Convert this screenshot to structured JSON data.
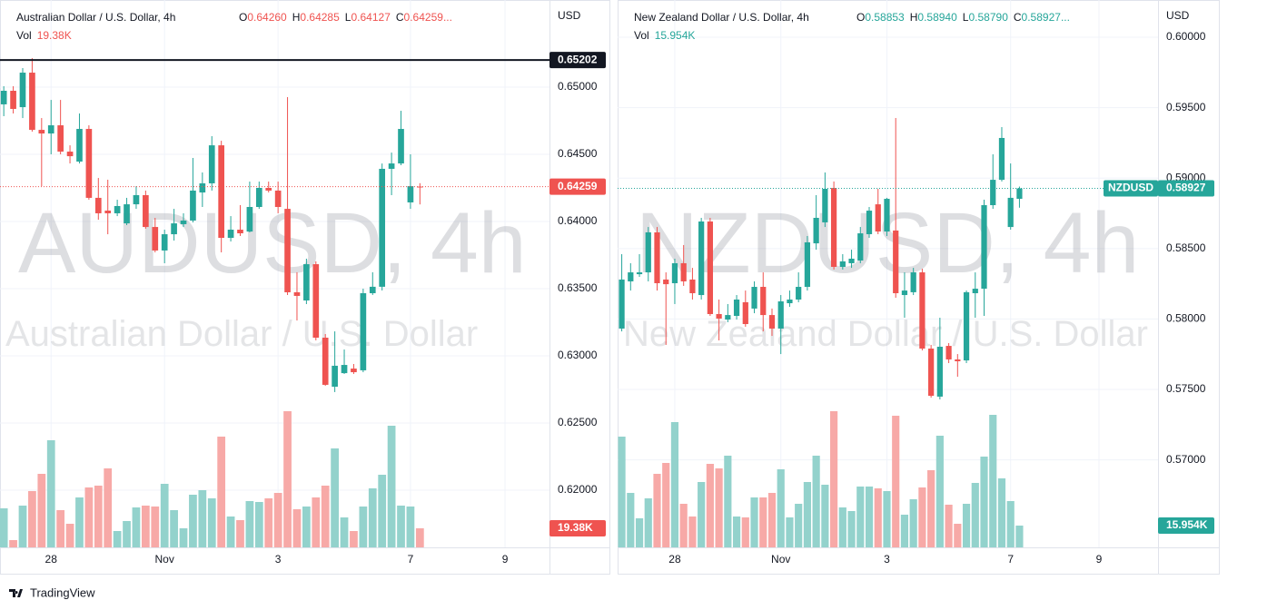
{
  "chart_data": [
    {
      "type": "candlestick",
      "title": "Australian Dollar / U.S. Dollar, 4h",
      "watermark": "AUDUSD, 4h",
      "watermark_subtitle": "Australian Dollar / U.S. Dollar",
      "currency": "USD",
      "ohlc_names": [
        "O",
        "H",
        "L",
        "C"
      ],
      "last_labels": {
        "open": "0.64260",
        "high": "0.64285",
        "low": "0.64127",
        "close": "0.64259"
      },
      "legend_more": "...",
      "volume_name": "Vol",
      "volume_label": "19.38K",
      "open": [
        0.64872,
        0.64973,
        0.64851,
        0.65108,
        0.64682,
        0.64655,
        0.64716,
        0.6452,
        0.64446,
        0.64689,
        0.64176,
        0.64081,
        0.64061,
        0.63986,
        0.64128,
        0.64196,
        0.63959,
        0.63784,
        0.63905,
        0.6398,
        0.64007,
        0.64216,
        0.64284,
        0.64567,
        0.63878,
        0.63939,
        0.63925,
        0.64108,
        0.6425,
        0.6423,
        0.64094,
        0.63473,
        0.63412,
        0.63682,
        0.63135,
        0.6277,
        0.62871,
        0.62905,
        0.62892,
        0.63466,
        0.63514,
        0.64392,
        0.64432,
        0.64142,
        0.6426
      ],
      "high": [
        0.65007,
        0.65007,
        0.65142,
        0.65216,
        0.6477,
        0.64905,
        0.64905,
        0.64567,
        0.64804,
        0.64716,
        0.64324,
        0.64311,
        0.64162,
        0.64176,
        0.64263,
        0.6423,
        0.64027,
        0.63939,
        0.64094,
        0.64061,
        0.64473,
        0.64365,
        0.64635,
        0.64601,
        0.6404,
        0.64122,
        0.64297,
        0.64297,
        0.64297,
        0.64297,
        0.64926,
        0.63622,
        0.63723,
        0.63703,
        0.63162,
        0.63182,
        0.63047,
        0.62939,
        0.635,
        0.63622,
        0.64432,
        0.64513,
        0.64824,
        0.645,
        0.64285
      ],
      "low": [
        0.64784,
        0.64804,
        0.6477,
        0.64669,
        0.64263,
        0.645,
        0.645,
        0.64432,
        0.64432,
        0.64162,
        0.64013,
        0.63905,
        0.6404,
        0.63973,
        0.64094,
        0.63946,
        0.6377,
        0.63689,
        0.63858,
        0.63959,
        0.63993,
        0.64108,
        0.6423,
        0.6377,
        0.63851,
        0.63892,
        0.63919,
        0.64094,
        0.64216,
        0.64061,
        0.63453,
        0.63263,
        0.63385,
        0.63115,
        0.62777,
        0.6273,
        0.62865,
        0.62865,
        0.62878,
        0.63453,
        0.63486,
        0.64196,
        0.64419,
        0.64094,
        0.64127
      ],
      "close": [
        0.64973,
        0.64838,
        0.65108,
        0.64682,
        0.64655,
        0.64716,
        0.6452,
        0.64486,
        0.64689,
        0.64176,
        0.64061,
        0.64061,
        0.64115,
        0.64128,
        0.64196,
        0.63959,
        0.63784,
        0.63905,
        0.63986,
        0.64007,
        0.6423,
        0.64284,
        0.64567,
        0.63878,
        0.63939,
        0.63912,
        0.64108,
        0.6425,
        0.6423,
        0.64108,
        0.63473,
        0.63446,
        0.63682,
        0.63135,
        0.62784,
        0.62926,
        0.62932,
        0.62878,
        0.63466,
        0.63514,
        0.64392,
        0.64432,
        0.64689,
        0.64263,
        0.64259
      ],
      "volume": [
        39690,
        7380,
        42460,
        57230,
        74760,
        108910,
        37840,
        24000,
        50770,
        60920,
        62760,
        80300,
        16610,
        26770,
        40610,
        42460,
        41540,
        64610,
        37840,
        19380,
        53530,
        58150,
        49840,
        112610,
        31380,
        27690,
        47070,
        46150,
        49840,
        55380,
        138450,
        38770,
        41540,
        50770,
        62760,
        100610,
        30460,
        16610,
        41540,
        60000,
        73840,
        123680,
        42460,
        41540,
        19380
      ],
      "up_color": "#26a69a",
      "down_color": "#ef5350",
      "volume_up_color": "#93d2cc",
      "volume_down_color": "#f7a9a7",
      "xlim": [
        -0.4,
        57.7
      ],
      "xticks": [
        {
          "value": 5,
          "label": "28"
        },
        {
          "value": 17,
          "label": "Nov"
        },
        {
          "value": 29,
          "label": "3"
        },
        {
          "value": 43,
          "label": "7"
        },
        {
          "value": 53,
          "label": "9"
        }
      ],
      "ylim": [
        0.61574,
        0.65615
      ],
      "yticks": [
        {
          "value": 0.62,
          "label": "0.62000"
        },
        {
          "value": 0.625,
          "label": "0.62500"
        },
        {
          "value": 0.63,
          "label": "0.63000"
        },
        {
          "value": 0.635,
          "label": "0.63500"
        },
        {
          "value": 0.64,
          "label": "0.64000"
        },
        {
          "value": 0.645,
          "label": "0.64500"
        },
        {
          "value": 0.65,
          "label": "0.65000"
        }
      ],
      "hline": {
        "value": 0.65202,
        "label": "0.65202",
        "color": "#131722"
      },
      "grid": true
    },
    {
      "type": "candlestick",
      "title": "New Zealand Dollar / U.S. Dollar, 4h",
      "watermark": "NZDUSD, 4h",
      "watermark_subtitle": "New Zealand Dollar / U.S. Dollar",
      "currency": "USD",
      "symbol": "NZDUSD",
      "ohlc_names": [
        "O",
        "H",
        "L",
        "C"
      ],
      "last_labels": {
        "open": "0.58853",
        "high": "0.58940",
        "low": "0.58790",
        "close": "0.58927"
      },
      "legend_more": "...",
      "volume_name": "Vol",
      "volume_label": "15.954K",
      "open": [
        0.57932,
        0.58267,
        0.58318,
        0.58331,
        0.58615,
        0.5828,
        0.58254,
        0.58396,
        0.5828,
        0.5817,
        0.58692,
        0.58035,
        0.57996,
        0.58022,
        0.58119,
        0.58074,
        0.58228,
        0.58028,
        0.57932,
        0.58112,
        0.58138,
        0.58228,
        0.58537,
        0.58686,
        0.5893,
        0.5837,
        0.58396,
        0.58415,
        0.58602,
        0.58814,
        0.58621,
        0.58628,
        0.5817,
        0.5819,
        0.58331,
        0.5779,
        0.57449,
        0.57809,
        0.57713,
        0.57706,
        0.58183,
        0.58215,
        0.58808,
        0.58988,
        0.58653,
        0.58853
      ],
      "high": [
        0.5846,
        0.58396,
        0.5846,
        0.58653,
        0.58653,
        0.58331,
        0.58428,
        0.58525,
        0.58363,
        0.58718,
        0.58718,
        0.58138,
        0.58106,
        0.5817,
        0.58202,
        0.58267,
        0.58331,
        0.58074,
        0.5817,
        0.58202,
        0.58331,
        0.58589,
        0.58879,
        0.5904,
        0.58976,
        0.5846,
        0.58492,
        0.58653,
        0.58795,
        0.58924,
        0.5886,
        0.59427,
        0.58331,
        0.58363,
        0.58357,
        0.57816,
        0.58009,
        0.57829,
        0.57751,
        0.58202,
        0.58331,
        0.58847,
        0.59169,
        0.59362,
        0.59104,
        0.5894
      ],
      "low": [
        0.57912,
        0.58202,
        0.58299,
        0.58267,
        0.58202,
        0.57816,
        0.58106,
        0.58235,
        0.58138,
        0.58138,
        0.58022,
        0.57848,
        0.57977,
        0.57996,
        0.57945,
        0.58041,
        0.57912,
        0.5788,
        0.57751,
        0.58086,
        0.58119,
        0.58202,
        0.58492,
        0.58653,
        0.58351,
        0.58351,
        0.58363,
        0.58396,
        0.58576,
        0.58602,
        0.58589,
        0.58151,
        0.58009,
        0.5817,
        0.57777,
        0.57442,
        0.57429,
        0.57687,
        0.5759,
        0.57687,
        0.58009,
        0.58022,
        0.58782,
        0.58976,
        0.58634,
        0.5879
      ],
      "close": [
        0.5828,
        0.58331,
        0.58331,
        0.58615,
        0.58254,
        0.58247,
        0.58396,
        0.58267,
        0.58183,
        0.58692,
        0.58035,
        0.58003,
        0.58028,
        0.58138,
        0.57964,
        0.58228,
        0.58028,
        0.57932,
        0.58125,
        0.58138,
        0.58228,
        0.58544,
        0.58718,
        0.58924,
        0.5837,
        0.58409,
        0.58428,
        0.58608,
        0.58769,
        0.58621,
        0.58853,
        0.58183,
        0.58202,
        0.58331,
        0.5779,
        0.57455,
        0.57803,
        0.57713,
        0.577,
        0.5819,
        0.58215,
        0.58808,
        0.58988,
        0.59285,
        0.5886,
        0.58927
      ],
      "volume": [
        81130,
        39900,
        21280,
        35910,
        53870,
        61850,
        91770,
        31920,
        22610,
        47880,
        61180,
        57860,
        67170,
        22610,
        21950,
        36580,
        36580,
        39900,
        57190,
        21950,
        31920,
        47880,
        67170,
        45890,
        99750,
        29260,
        26600,
        44560,
        44560,
        43230,
        41230,
        96430,
        23940,
        35250,
        43890,
        56530,
        81800,
        31260,
        17290,
        31920,
        47220,
        66500,
        97090,
        50540,
        33920,
        15954
      ],
      "up_color": "#26a69a",
      "down_color": "#ef5350",
      "volume_up_color": "#93d2cc",
      "volume_down_color": "#f7a9a7",
      "xlim": [
        -0.47,
        60.68
      ],
      "xticks": [
        {
          "value": 6,
          "label": "28"
        },
        {
          "value": 18,
          "label": "Nov"
        },
        {
          "value": 30,
          "label": "3"
        },
        {
          "value": 44,
          "label": "7"
        },
        {
          "value": 54,
          "label": "9"
        }
      ],
      "ylim": [
        0.56379,
        0.60232
      ],
      "yticks": [
        {
          "value": 0.57,
          "label": "0.57000"
        },
        {
          "value": 0.575,
          "label": "0.57500"
        },
        {
          "value": 0.58,
          "label": "0.58000"
        },
        {
          "value": 0.585,
          "label": "0.58500"
        },
        {
          "value": 0.59,
          "label": "0.59000"
        },
        {
          "value": 0.595,
          "label": "0.59500"
        },
        {
          "value": 0.6,
          "label": "0.60000"
        }
      ],
      "grid": true
    }
  ],
  "footer": "TradingView"
}
